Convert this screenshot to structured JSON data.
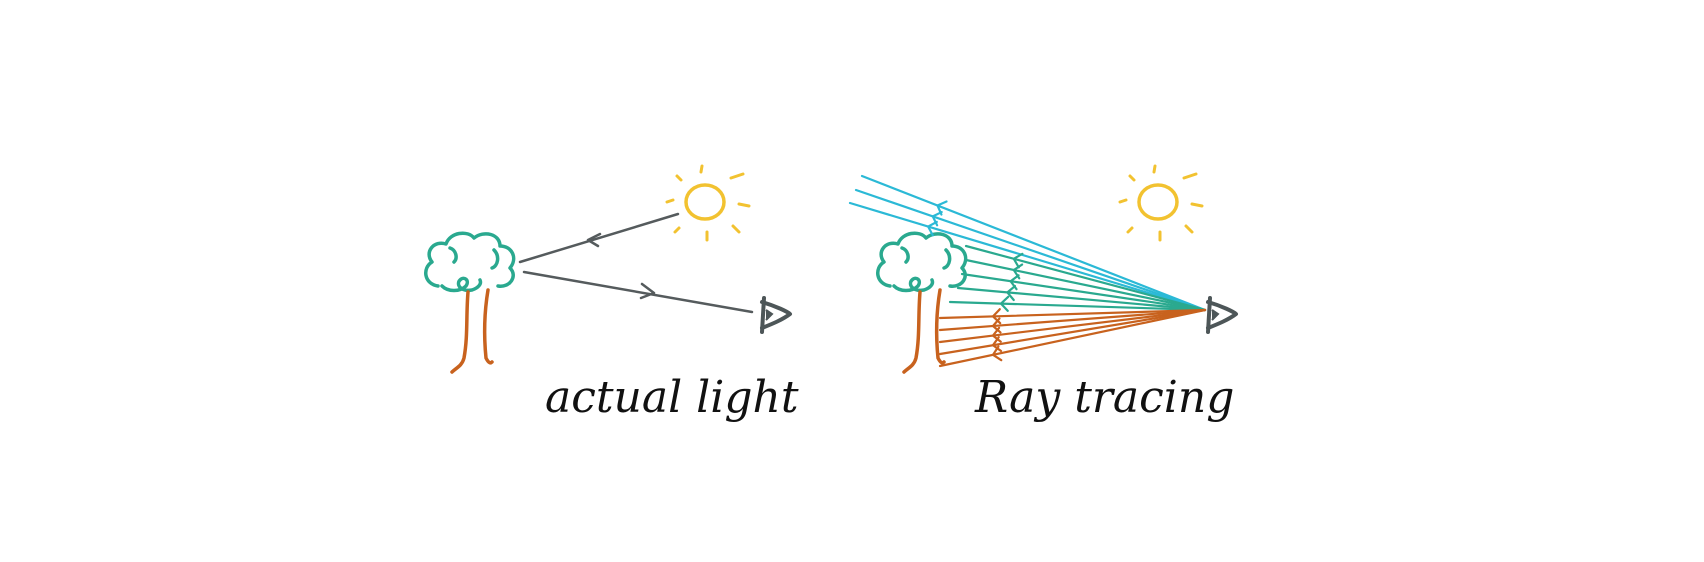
{
  "captions": {
    "actual_light": "actual light",
    "ray_tracing": "Ray tracing"
  },
  "colors": {
    "background": "#ffffff",
    "tree_crown": "#2aa98f",
    "tree_trunk": "#c8621e",
    "sun": "#f2c230",
    "ray_gray": "#555b5d",
    "ray_sky": "#2bb9d6",
    "ray_tree": "#2aa98f",
    "ray_trunk": "#c8621e",
    "eye": "#4d5658"
  },
  "icons": [
    "tree-icon",
    "sun-icon",
    "eye-icon"
  ]
}
